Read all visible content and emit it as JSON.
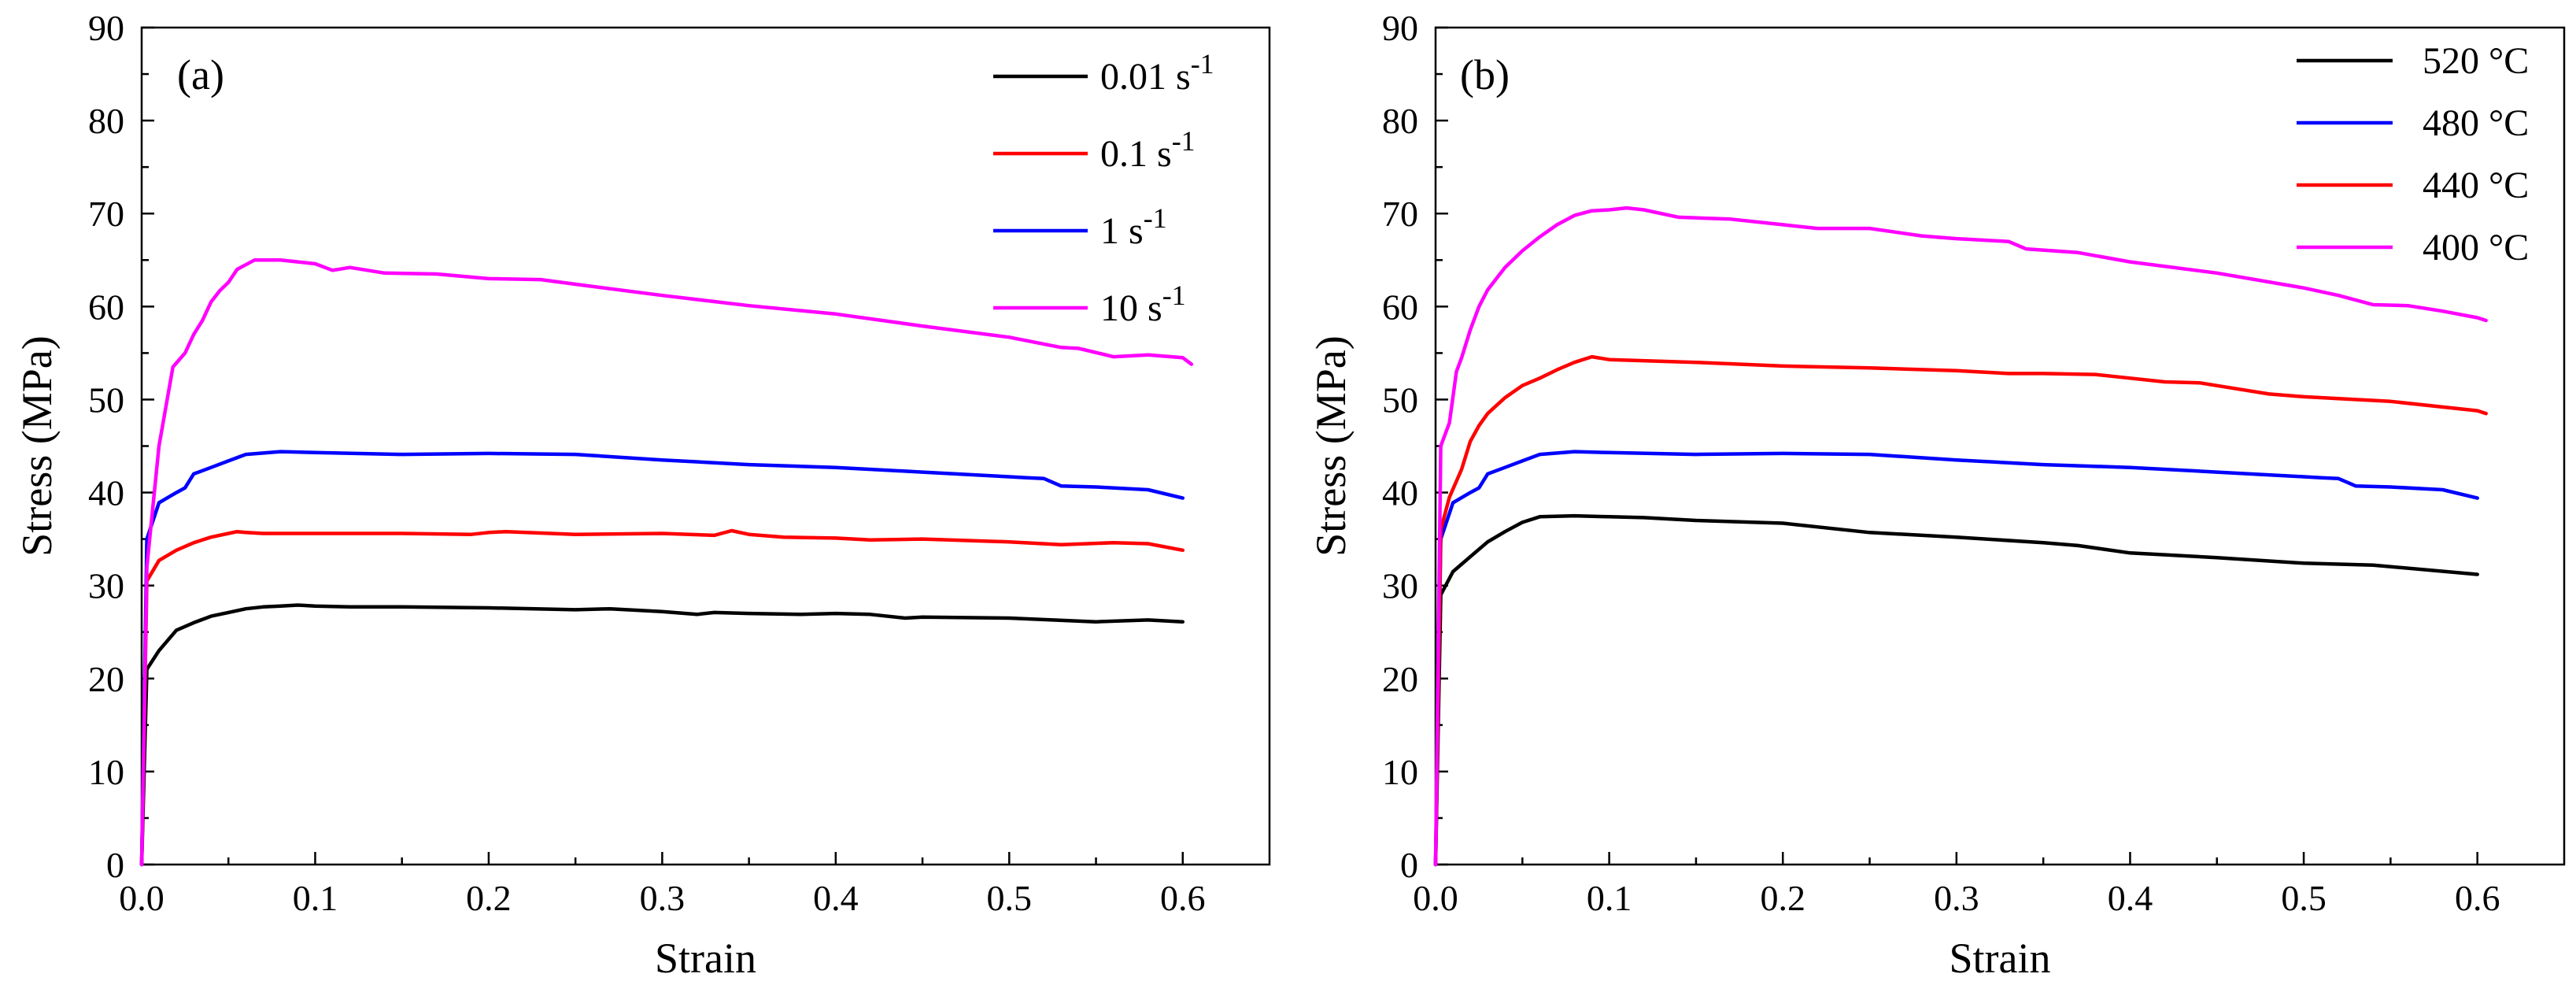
{
  "chart_data": [
    {
      "type": "line",
      "panel_label": "(a)",
      "xlabel": "Strain",
      "ylabel": "Stress (MPa)",
      "xlim": [
        0.0,
        0.65
      ],
      "ylim": [
        0,
        90
      ],
      "xticks": [
        "0.0",
        "0.1",
        "0.2",
        "0.3",
        "0.4",
        "0.5",
        "0.6"
      ],
      "yticks": [
        "0",
        "10",
        "20",
        "30",
        "40",
        "50",
        "60",
        "70",
        "80",
        "90"
      ],
      "grid": false,
      "legend_position": "top-right",
      "series": [
        {
          "name": "0.01 s",
          "name_sup": "-1",
          "color": "#000000",
          "x": [
            0,
            0.003,
            0.01,
            0.02,
            0.03,
            0.04,
            0.05,
            0.06,
            0.07,
            0.08,
            0.09,
            0.1,
            0.12,
            0.15,
            0.2,
            0.25,
            0.27,
            0.3,
            0.32,
            0.33,
            0.35,
            0.38,
            0.4,
            0.42,
            0.44,
            0.45,
            0.5,
            0.55,
            0.58,
            0.6
          ],
          "y": [
            0,
            21,
            23,
            25.2,
            26,
            26.7,
            27.1,
            27.5,
            27.7,
            27.8,
            27.9,
            27.8,
            27.7,
            27.7,
            27.6,
            27.4,
            27.5,
            27.2,
            26.9,
            27.1,
            27,
            26.9,
            27,
            26.9,
            26.5,
            26.6,
            26.5,
            26.1,
            26.3,
            26.1
          ]
        },
        {
          "name": "0.1 s",
          "name_sup": "-1",
          "color": "#ff0000",
          "x": [
            0,
            0.003,
            0.01,
            0.02,
            0.03,
            0.04,
            0.05,
            0.055,
            0.06,
            0.07,
            0.1,
            0.15,
            0.19,
            0.2,
            0.21,
            0.25,
            0.3,
            0.33,
            0.34,
            0.35,
            0.37,
            0.4,
            0.42,
            0.45,
            0.5,
            0.53,
            0.56,
            0.58,
            0.6
          ],
          "y": [
            0,
            30.5,
            32.7,
            33.8,
            34.6,
            35.2,
            35.6,
            35.8,
            35.7,
            35.6,
            35.6,
            35.6,
            35.5,
            35.7,
            35.8,
            35.5,
            35.6,
            35.4,
            35.9,
            35.5,
            35.2,
            35.1,
            34.9,
            35,
            34.7,
            34.4,
            34.6,
            34.5,
            33.8
          ]
        },
        {
          "name": "1 s",
          "name_sup": "-1",
          "color": "#0000ff",
          "x": [
            0,
            0.003,
            0.01,
            0.02,
            0.025,
            0.03,
            0.04,
            0.05,
            0.06,
            0.08,
            0.1,
            0.15,
            0.2,
            0.25,
            0.3,
            0.35,
            0.4,
            0.45,
            0.5,
            0.51,
            0.52,
            0.53,
            0.55,
            0.58,
            0.6
          ],
          "y": [
            0,
            35,
            38.9,
            40,
            40.5,
            42,
            42.7,
            43.4,
            44.1,
            44.4,
            44.3,
            44.1,
            44.2,
            44.1,
            43.5,
            43,
            42.7,
            42.2,
            41.7,
            41.6,
            41.5,
            40.7,
            40.6,
            40.3,
            39.4
          ]
        },
        {
          "name": "10 s",
          "name_sup": "-1",
          "color": "#ff00ff",
          "x": [
            0,
            0.003,
            0.01,
            0.018,
            0.025,
            0.03,
            0.035,
            0.04,
            0.045,
            0.05,
            0.055,
            0.06,
            0.065,
            0.08,
            0.09,
            0.1,
            0.11,
            0.12,
            0.14,
            0.17,
            0.2,
            0.23,
            0.25,
            0.3,
            0.35,
            0.4,
            0.45,
            0.5,
            0.53,
            0.54,
            0.56,
            0.58,
            0.6,
            0.605
          ],
          "y": [
            0,
            32,
            45,
            53.5,
            55,
            57,
            58.5,
            60.5,
            61.7,
            62.6,
            64,
            64.5,
            65,
            65,
            64.8,
            64.6,
            63.9,
            64.2,
            63.6,
            63.5,
            63,
            62.9,
            62.4,
            61.2,
            60.1,
            59.2,
            57.9,
            56.7,
            55.6,
            55.5,
            54.6,
            54.8,
            54.5,
            53.8
          ]
        }
      ]
    },
    {
      "type": "line",
      "panel_label": "(b)",
      "xlabel": "Strain",
      "ylabel": "Stress (MPa)",
      "xlim": [
        0.0,
        0.65
      ],
      "ylim": [
        0,
        90
      ],
      "xticks": [
        "0.0",
        "0.1",
        "0.2",
        "0.3",
        "0.4",
        "0.5",
        "0.6"
      ],
      "yticks": [
        "0",
        "10",
        "20",
        "30",
        "40",
        "50",
        "60",
        "70",
        "80",
        "90"
      ],
      "grid": false,
      "legend_position": "top-right",
      "series": [
        {
          "name": "520 °C",
          "color": "#000000",
          "x": [
            0,
            0.003,
            0.01,
            0.02,
            0.03,
            0.04,
            0.05,
            0.06,
            0.08,
            0.1,
            0.12,
            0.15,
            0.2,
            0.25,
            0.3,
            0.35,
            0.37,
            0.4,
            0.45,
            0.5,
            0.54,
            0.6
          ],
          "y": [
            0,
            29,
            31.5,
            33.1,
            34.7,
            35.8,
            36.8,
            37.4,
            37.5,
            37.4,
            37.3,
            37,
            36.7,
            35.7,
            35.2,
            34.6,
            34.3,
            33.5,
            33,
            32.4,
            32.2,
            31.2
          ]
        },
        {
          "name": "480 °C",
          "color": "#0000ff",
          "x": [
            0,
            0.003,
            0.01,
            0.02,
            0.025,
            0.03,
            0.04,
            0.05,
            0.06,
            0.08,
            0.1,
            0.15,
            0.2,
            0.25,
            0.3,
            0.35,
            0.4,
            0.45,
            0.5,
            0.51,
            0.52,
            0.53,
            0.55,
            0.58,
            0.6
          ],
          "y": [
            0,
            35,
            38.9,
            40,
            40.5,
            42,
            42.7,
            43.4,
            44.1,
            44.4,
            44.3,
            44.1,
            44.2,
            44.1,
            43.5,
            43,
            42.7,
            42.2,
            41.7,
            41.6,
            41.5,
            40.7,
            40.6,
            40.3,
            39.4
          ]
        },
        {
          "name": "440 °C",
          "color": "#ff0000",
          "x": [
            0,
            0.003,
            0.008,
            0.015,
            0.02,
            0.025,
            0.03,
            0.04,
            0.05,
            0.06,
            0.07,
            0.08,
            0.09,
            0.1,
            0.15,
            0.2,
            0.25,
            0.3,
            0.33,
            0.35,
            0.38,
            0.4,
            0.42,
            0.44,
            0.46,
            0.48,
            0.5,
            0.55,
            0.6,
            0.605
          ],
          "y": [
            0,
            36,
            39.5,
            42.5,
            45.5,
            47.2,
            48.5,
            50.2,
            51.5,
            52.3,
            53.2,
            54,
            54.6,
            54.3,
            54,
            53.6,
            53.4,
            53.1,
            52.8,
            52.8,
            52.7,
            52.3,
            51.9,
            51.8,
            51.2,
            50.6,
            50.3,
            49.8,
            48.8,
            48.5
          ]
        },
        {
          "name": "400 °C",
          "color": "#ff00ff",
          "x": [
            0,
            0.003,
            0.008,
            0.012,
            0.015,
            0.02,
            0.025,
            0.03,
            0.04,
            0.05,
            0.06,
            0.07,
            0.08,
            0.09,
            0.1,
            0.11,
            0.12,
            0.14,
            0.17,
            0.2,
            0.22,
            0.25,
            0.28,
            0.3,
            0.33,
            0.34,
            0.37,
            0.4,
            0.45,
            0.5,
            0.52,
            0.54,
            0.56,
            0.58,
            0.6,
            0.605
          ],
          "y": [
            0,
            45,
            47.5,
            53,
            54.5,
            57.5,
            60,
            61.8,
            64.2,
            66,
            67.5,
            68.8,
            69.8,
            70.3,
            70.4,
            70.6,
            70.4,
            69.6,
            69.4,
            68.8,
            68.4,
            68.4,
            67.6,
            67.3,
            67,
            66.2,
            65.8,
            64.8,
            63.6,
            62,
            61.2,
            60.2,
            60.1,
            59.5,
            58.8,
            58.5
          ]
        }
      ]
    }
  ]
}
